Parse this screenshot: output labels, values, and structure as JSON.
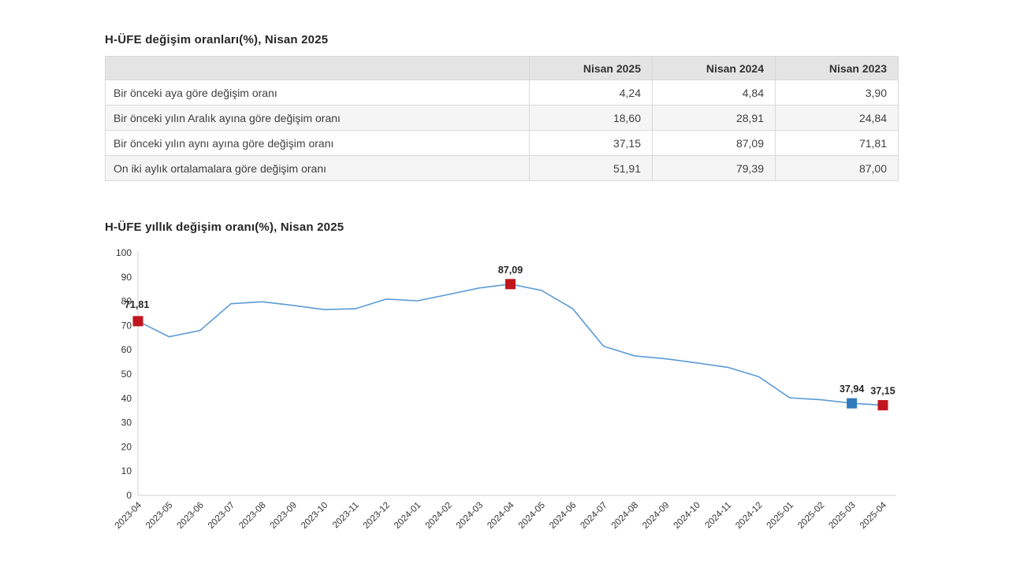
{
  "colors": {
    "line": "#5b9bd5",
    "marker_red": "#c0161d",
    "marker_blue": "#2e7bbf",
    "axis": "#d9d9d9",
    "header_bg": "#e4e4e4",
    "row_alt_bg": "#f5f5f5"
  },
  "chart_data": [
    {
      "type": "table",
      "title": "H-ÜFE değişim oranları(%), Nisan 2025",
      "columns": [
        "",
        "Nisan 2025",
        "Nisan 2024",
        "Nisan 2023"
      ],
      "rows": [
        {
          "label": "Bir önceki aya göre değişim oranı",
          "values": [
            "4,24",
            "4,84",
            "3,90"
          ]
        },
        {
          "label": "Bir önceki yılın Aralık ayına göre değişim oranı",
          "values": [
            "18,60",
            "28,91",
            "24,84"
          ]
        },
        {
          "label": "Bir önceki yılın aynı ayına göre değişim oranı",
          "values": [
            "37,15",
            "87,09",
            "71,81"
          ]
        },
        {
          "label": "On iki aylık ortalamalara göre değişim oranı",
          "values": [
            "51,91",
            "79,39",
            "87,00"
          ]
        }
      ]
    },
    {
      "type": "line",
      "title": "H-ÜFE yıllık değişim oranı(%), Nisan 2025",
      "x": [
        "2023-04",
        "2023-05",
        "2023-06",
        "2023-07",
        "2023-08",
        "2023-09",
        "2023-10",
        "2023-11",
        "2023-12",
        "2024-01",
        "2024-02",
        "2024-03",
        "2024-04",
        "2024-05",
        "2024-06",
        "2024-07",
        "2024-08",
        "2024-09",
        "2024-10",
        "2024-11",
        "2024-12",
        "2025-01",
        "2025-02",
        "2025-03",
        "2025-04"
      ],
      "values": [
        71.81,
        65.4,
        68.0,
        79.0,
        79.8,
        78.3,
        76.6,
        76.9,
        80.9,
        80.2,
        82.8,
        85.5,
        87.09,
        84.5,
        77.0,
        61.5,
        57.5,
        56.3,
        54.6,
        52.8,
        48.9,
        40.2,
        39.4,
        37.94,
        37.15
      ],
      "ylim": [
        0,
        100
      ],
      "ytick_step": 10,
      "grid": false,
      "legend_position": "none",
      "line_color": "#5b9bd5",
      "labeled_points": [
        {
          "x": "2023-04",
          "label": "71,81",
          "marker_color": "#c0161d",
          "label_pos": "upper-left"
        },
        {
          "x": "2024-04",
          "label": "87,09",
          "marker_color": "#c0161d",
          "label_pos": "above"
        },
        {
          "x": "2025-03",
          "label": "37,94",
          "marker_color": "#2e7bbf",
          "label_pos": "above"
        },
        {
          "x": "2025-04",
          "label": "37,15",
          "marker_color": "#c0161d",
          "label_pos": "above"
        }
      ]
    }
  ]
}
